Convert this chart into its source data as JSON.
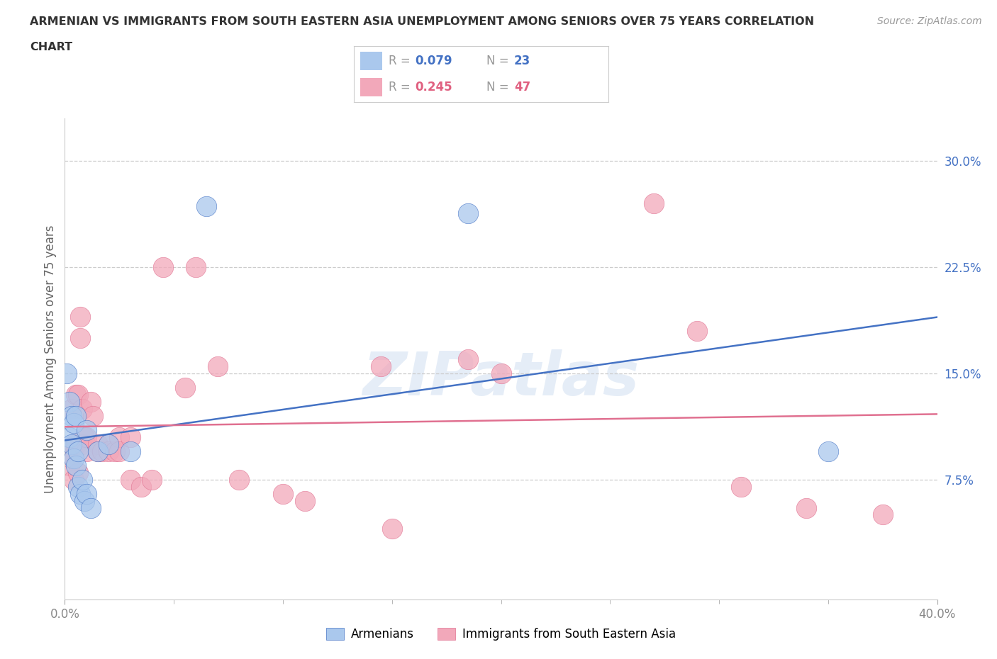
{
  "title_line1": "ARMENIAN VS IMMIGRANTS FROM SOUTH EASTERN ASIA UNEMPLOYMENT AMONG SENIORS OVER 75 YEARS CORRELATION",
  "title_line2": "CHART",
  "source": "Source: ZipAtlas.com",
  "ylabel": "Unemployment Among Seniors over 75 years",
  "xlim": [
    0.0,
    0.4
  ],
  "ylim": [
    -0.01,
    0.33
  ],
  "color_blue": "#aac8ed",
  "color_pink": "#f2a8ba",
  "color_blue_line": "#4472c4",
  "color_pink_line": "#e07090",
  "color_blue_text": "#4472c4",
  "color_pink_text": "#e06080",
  "watermark_color": "#ccdcf0",
  "background_color": "#ffffff",
  "gridline_y": [
    0.075,
    0.15,
    0.225,
    0.3
  ],
  "ytick_right_labels": [
    "7.5%",
    "15.0%",
    "22.5%",
    "30.0%"
  ],
  "legend_label1": "Armenians",
  "legend_label2": "Immigrants from South Eastern Asia",
  "armenians_x": [
    0.001,
    0.002,
    0.002,
    0.003,
    0.003,
    0.004,
    0.004,
    0.005,
    0.005,
    0.006,
    0.006,
    0.007,
    0.008,
    0.009,
    0.01,
    0.01,
    0.012,
    0.015,
    0.02,
    0.03,
    0.065,
    0.185,
    0.35
  ],
  "armenians_y": [
    0.15,
    0.13,
    0.105,
    0.12,
    0.1,
    0.115,
    0.09,
    0.12,
    0.085,
    0.095,
    0.07,
    0.065,
    0.075,
    0.06,
    0.11,
    0.065,
    0.055,
    0.095,
    0.1,
    0.095,
    0.268,
    0.263,
    0.095
  ],
  "sea_x": [
    0.001,
    0.002,
    0.003,
    0.003,
    0.004,
    0.004,
    0.005,
    0.005,
    0.006,
    0.006,
    0.007,
    0.007,
    0.008,
    0.008,
    0.009,
    0.01,
    0.01,
    0.012,
    0.013,
    0.015,
    0.015,
    0.017,
    0.02,
    0.02,
    0.023,
    0.025,
    0.025,
    0.03,
    0.03,
    0.035,
    0.04,
    0.045,
    0.055,
    0.06,
    0.07,
    0.08,
    0.1,
    0.11,
    0.145,
    0.15,
    0.2,
    0.27,
    0.31,
    0.34,
    0.375,
    0.185,
    0.29
  ],
  "sea_y": [
    0.095,
    0.085,
    0.125,
    0.09,
    0.1,
    0.075,
    0.135,
    0.1,
    0.135,
    0.08,
    0.175,
    0.19,
    0.1,
    0.125,
    0.105,
    0.095,
    0.105,
    0.13,
    0.12,
    0.1,
    0.095,
    0.095,
    0.1,
    0.095,
    0.095,
    0.105,
    0.095,
    0.075,
    0.105,
    0.07,
    0.075,
    0.225,
    0.14,
    0.225,
    0.155,
    0.075,
    0.065,
    0.06,
    0.155,
    0.04,
    0.15,
    0.27,
    0.07,
    0.055,
    0.05,
    0.16,
    0.18
  ]
}
